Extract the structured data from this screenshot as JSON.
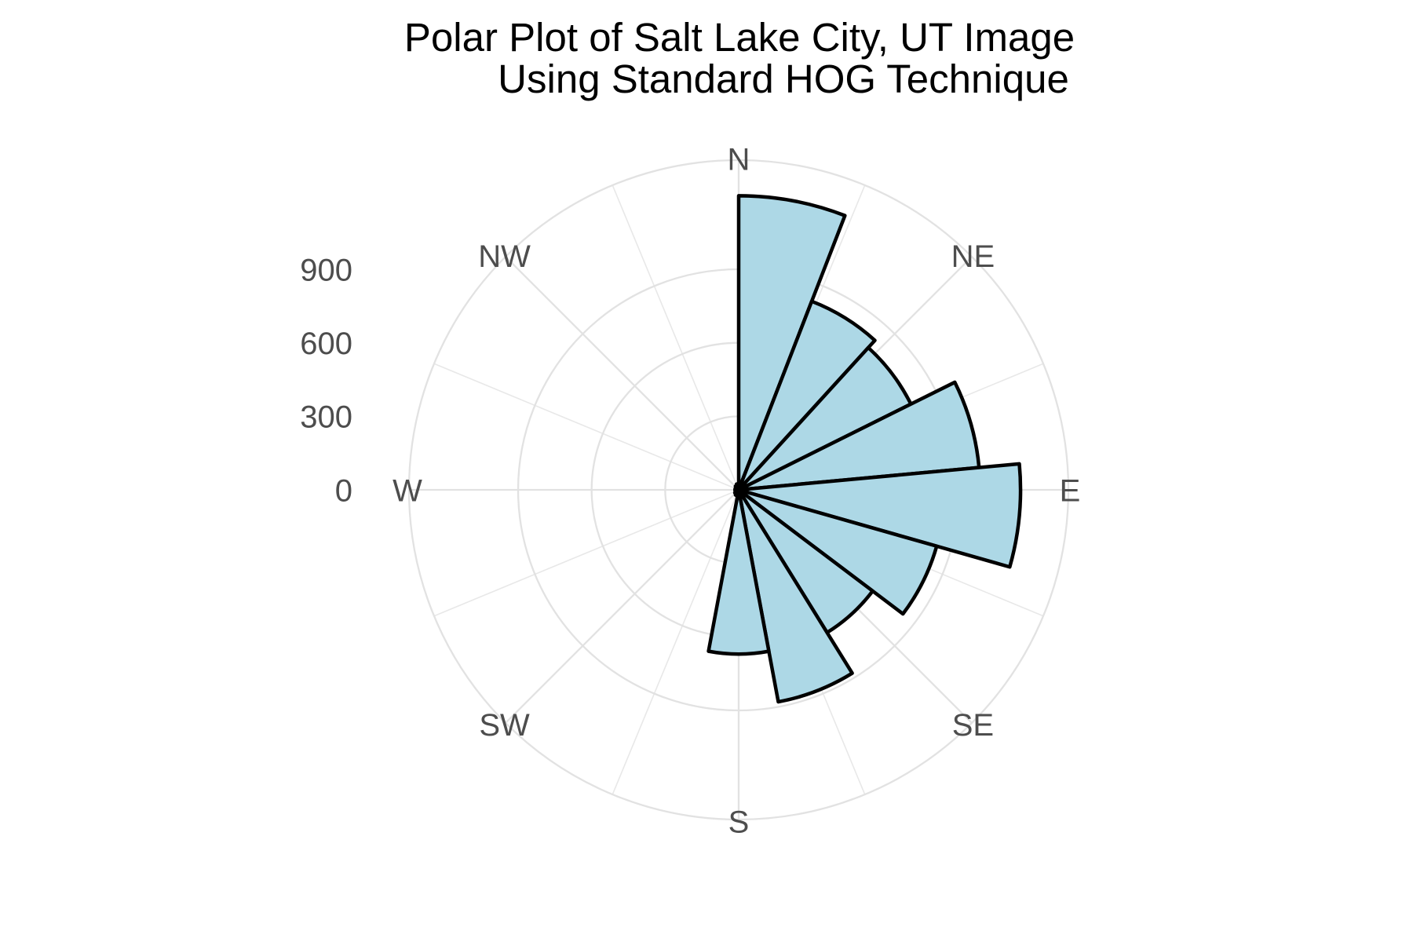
{
  "title": {
    "line1": "Polar Plot of Salt Lake City, UT Image",
    "line2": "Using Standard HOG Technique"
  },
  "chart_data": {
    "type": "polar_bar",
    "title": "Polar Plot of Salt Lake City, UT Image Using Standard HOG Technique",
    "direction_labels": [
      "N",
      "NE",
      "E",
      "SE",
      "S",
      "SW",
      "W",
      "NW"
    ],
    "direction_angles_deg": [
      0,
      45,
      90,
      135,
      180,
      225,
      270,
      315
    ],
    "radial_tick_labels": [
      "0",
      "300",
      "600",
      "900"
    ],
    "radial_tick_values": [
      0,
      300,
      600,
      900
    ],
    "grid_circle_values": [
      300,
      600,
      900
    ],
    "r_axis_max": 1345,
    "bins": 17,
    "start_angle_deg": 0,
    "clockwise": true,
    "values": [
      1200,
      825,
      785,
      985,
      1150,
      840,
      685,
      880,
      670,
      25,
      20,
      15,
      15,
      15,
      15,
      20,
      25
    ],
    "spoke_step_deg": 22.5,
    "legend": "none",
    "grid": "on",
    "colors": {
      "fill": "#ADD8E6",
      "stroke": "#000000",
      "grid_major": "#E2E2E2",
      "grid_minor": "#E8E8E8",
      "axis_text": "#4D4D4D",
      "title_text": "#000000",
      "background": "#FFFFFF"
    }
  }
}
